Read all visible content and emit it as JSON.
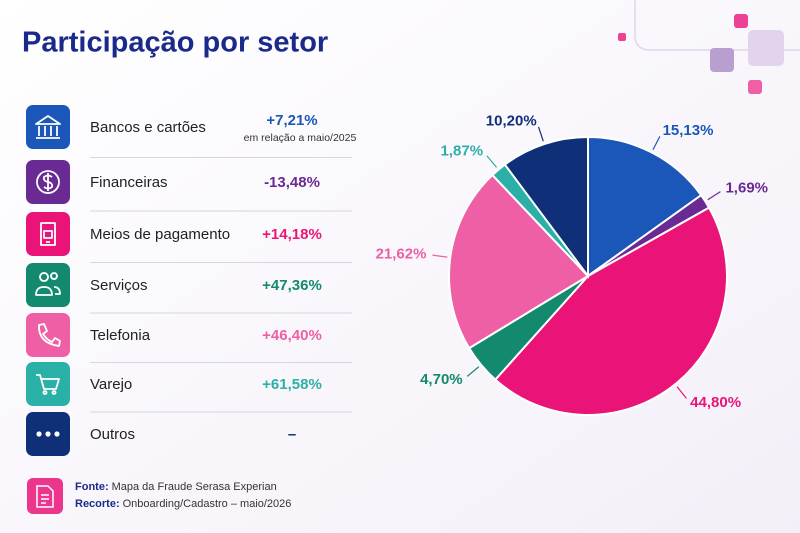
{
  "title": "Participação por setor",
  "sectors": [
    {
      "change": "+7,21%",
      "note": "em relação a maio/2025"
    },
    {
      "change": "-13,48%"
    },
    {
      "change": "+14,18%"
    },
    {
      "change": "+47,36%"
    },
    {
      "change": "+46,40%"
    },
    {
      "change": "+61,58%"
    },
    {
      "change": "–"
    }
  ],
  "source": {
    "label": "Fonte:",
    "text": "Mapa da Fraude Serasa Experian"
  },
  "cut": {
    "label": "Recorte:",
    "text": "Onboarding/Cadastro – maio/2026"
  },
  "chart_data": {
    "type": "pie",
    "categories": [
      "Bancos e cartões",
      "Financeiras",
      "Meios de pagamento",
      "Serviços",
      "Telefonia",
      "Varejo",
      "Outros"
    ],
    "values": [
      15.13,
      1.69,
      44.8,
      4.7,
      21.62,
      1.87,
      10.2
    ],
    "value_labels": [
      "15,13%",
      "1,69%",
      "44,80%",
      "4,70%",
      "21,62%",
      "1,87%",
      "10,20%"
    ],
    "colors": [
      "#1b57b8",
      "#6a2a94",
      "#ea1479",
      "#138a6e",
      "#ee5fa6",
      "#2bb0a8",
      "#0f2f78"
    ]
  }
}
